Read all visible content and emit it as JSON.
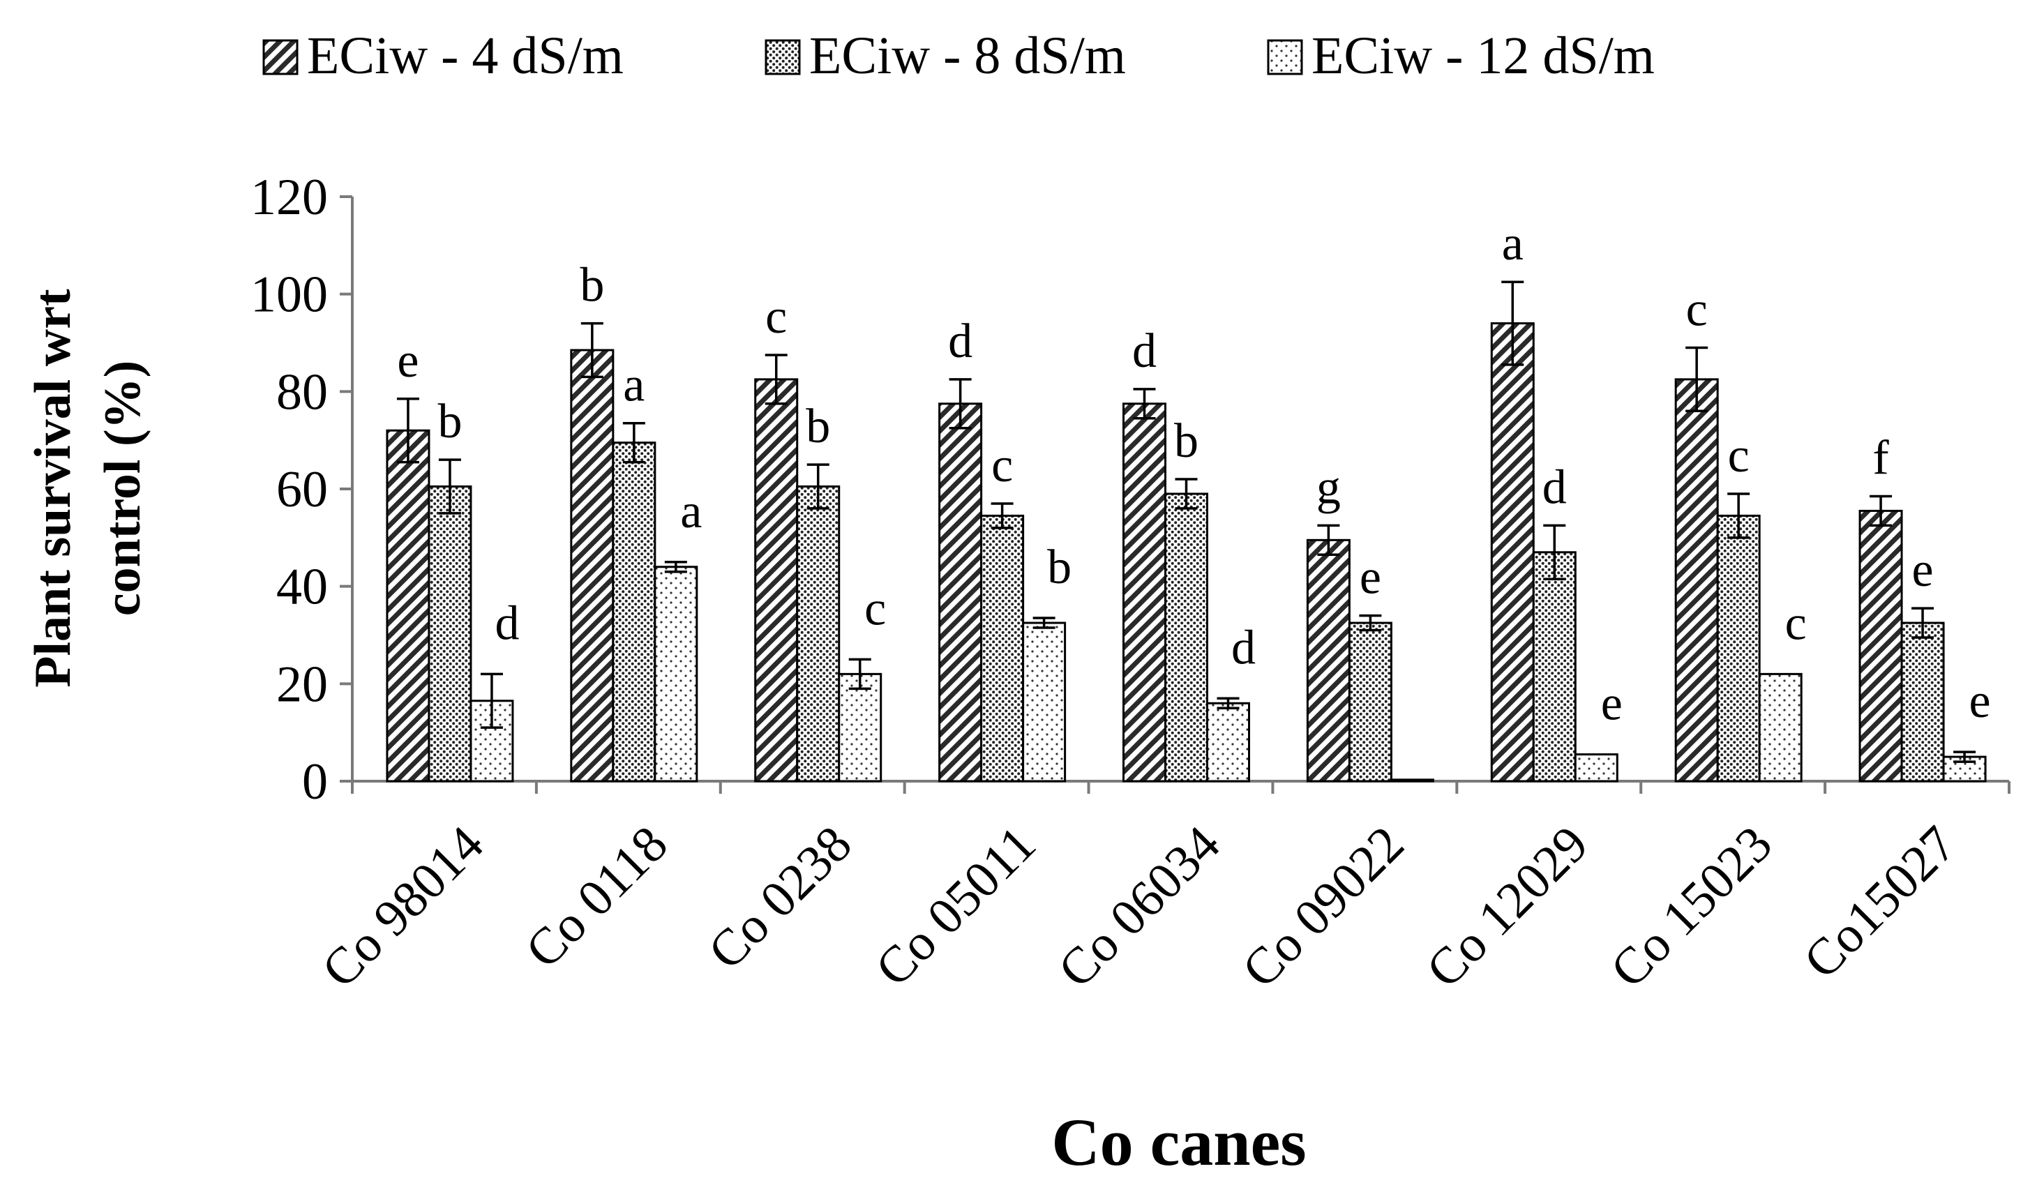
{
  "chart_data": {
    "type": "bar",
    "title": "",
    "xlabel": "Co canes",
    "ylabel": "Plant survival wrt control (%)",
    "ylabel_lines": [
      "Plant survival wrt",
      "control (%)"
    ],
    "ylim": [
      0,
      120
    ],
    "yticks": [
      0,
      20,
      40,
      60,
      80,
      100,
      120
    ],
    "grid": false,
    "legend_position": "top",
    "categories": [
      "Co 98014",
      "Co 0118",
      "Co 0238",
      "Co 05011",
      "Co 06034",
      "Co 09022",
      "Co 12029",
      "Co 15023",
      "Co15027"
    ],
    "series": [
      {
        "name": "ECiw - 4 dS/m",
        "pattern": "diagonal-hatch",
        "values": [
          72,
          88.5,
          82.5,
          77.5,
          77.5,
          49.5,
          94,
          82.5,
          55.5
        ],
        "errors": [
          6.5,
          5.5,
          5,
          5,
          3,
          3,
          8.5,
          6.5,
          3
        ],
        "labels": [
          "e",
          "b",
          "c",
          "d",
          "d",
          "g",
          "a",
          "c",
          "f"
        ]
      },
      {
        "name": "ECiw - 8 dS/m",
        "pattern": "dense-dots",
        "values": [
          60.5,
          69.5,
          60.5,
          54.5,
          59,
          32.5,
          47,
          54.5,
          32.5
        ],
        "errors": [
          5.5,
          4,
          4.5,
          2.5,
          3,
          1.5,
          5.5,
          4.5,
          3
        ],
        "labels": [
          "b",
          "a",
          "b",
          "c",
          "b",
          "e",
          "d",
          "c",
          "e"
        ]
      },
      {
        "name": "ECiw - 12 dS/m",
        "pattern": "sparse-dots",
        "values": [
          16.5,
          44,
          22,
          32.5,
          16,
          0.3,
          5.5,
          22,
          5
        ],
        "errors": [
          5.5,
          1,
          3,
          1,
          1,
          0,
          0,
          0,
          1
        ],
        "labels": [
          "d",
          "a",
          "c",
          "b",
          "d",
          "",
          "e",
          "c",
          "e"
        ]
      }
    ]
  }
}
